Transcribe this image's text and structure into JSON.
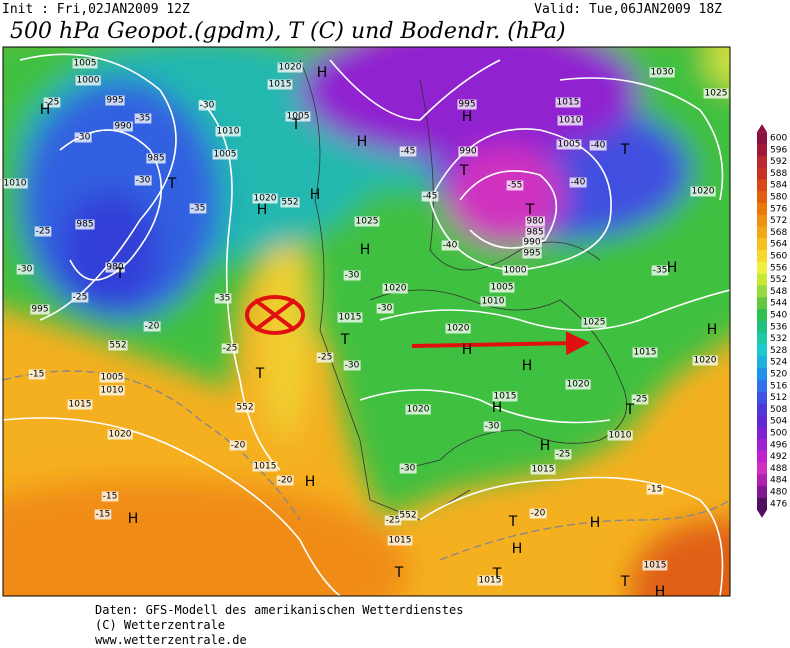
{
  "header": {
    "init": "Init : Fri,02JAN2009 12Z",
    "valid": "Valid: Tue,06JAN2009 18Z",
    "title": "500 hPa Geopot.(gpdm), T (C) und Bodendr. (hPa)"
  },
  "colorbar": {
    "levels": [
      600,
      596,
      592,
      588,
      584,
      580,
      576,
      572,
      568,
      564,
      560,
      556,
      552,
      548,
      544,
      540,
      536,
      532,
      528,
      524,
      520,
      516,
      512,
      508,
      504,
      500,
      496,
      492,
      488,
      484,
      480,
      476
    ],
    "colors": [
      "#8b1040",
      "#a01838",
      "#b82830",
      "#c83020",
      "#d84818",
      "#e06010",
      "#e87808",
      "#f09010",
      "#f0a818",
      "#f8c020",
      "#f8d830",
      "#f0f040",
      "#c8e838",
      "#98d840",
      "#60c840",
      "#30c050",
      "#20c080",
      "#20c8a8",
      "#20c8d0",
      "#20b0e0",
      "#2090e8",
      "#3070e8",
      "#4050e0",
      "#5038d8",
      "#6028d0",
      "#8020d0",
      "#a020d0",
      "#c020d0",
      "#d030c0",
      "#b020b0",
      "#801890",
      "#501060"
    ]
  },
  "map_labels": [
    "1005",
    "1000",
    "995",
    "990",
    "985",
    "985",
    "980",
    "1010",
    "995",
    "1005",
    "1010",
    "1020",
    "1015",
    "1005",
    "1020",
    "1025",
    "1020",
    "1015",
    "1005",
    "1010",
    "1015",
    "1020",
    "1015",
    "1020",
    "1015",
    "1020",
    "1015",
    "1020",
    "1025",
    "1000",
    "1005",
    "1010",
    "1020",
    "995",
    "990",
    "1005",
    "1015",
    "1010",
    "1030",
    "1025",
    "1020",
    "980",
    "985",
    "990",
    "995",
    "1015",
    "1015",
    "1015",
    "1015",
    "1010",
    "-30",
    "-35",
    "-30",
    "-25",
    "-30",
    "-35",
    "-25",
    "-30",
    "-25",
    "-20",
    "-15",
    "-35",
    "-25",
    "-20",
    "-20",
    "-15",
    "-15",
    "-25",
    "-30",
    "-30",
    "-30",
    "-45",
    "-40",
    "-45",
    "-40",
    "-40",
    "-55",
    "-35",
    "-30",
    "-30",
    "-25",
    "-20",
    "-15",
    "-25",
    "-25",
    "552",
    "552",
    "552",
    "552",
    "H",
    "H",
    "T",
    "H",
    "T",
    "T",
    "H",
    "H",
    "H",
    "T",
    "T",
    "H",
    "T",
    "T",
    "T",
    "H",
    "H",
    "H",
    "H",
    "H",
    "T",
    "H",
    "H",
    "H",
    "T",
    "H",
    "T",
    "H",
    "T",
    "T",
    "H"
  ],
  "footer": [
    "Daten: GFS-Modell des amerikanischen Wetterdienstes",
    "(C) Wetterzentrale",
    "www.wetterzentrale.de"
  ]
}
